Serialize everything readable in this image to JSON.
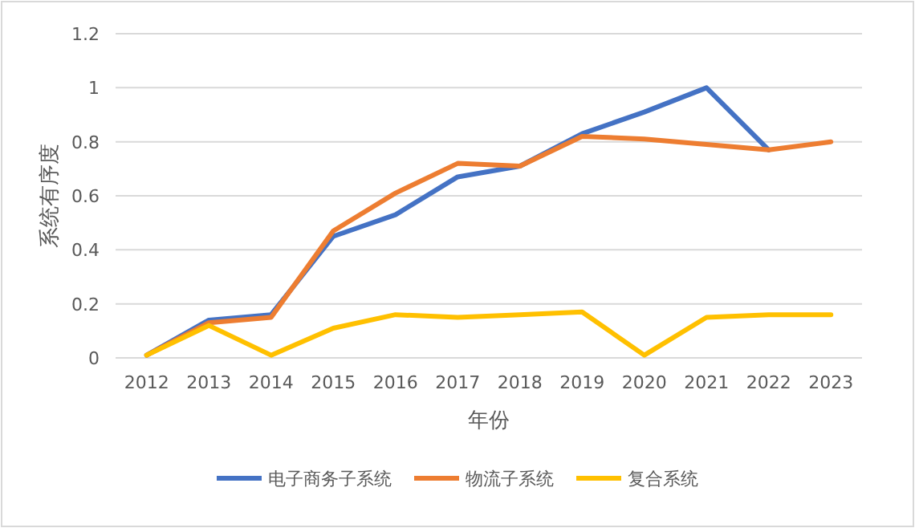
{
  "chart_data": {
    "type": "line",
    "xlabel": "年份",
    "ylabel": "系统有序度",
    "categories": [
      "2012",
      "2013",
      "2014",
      "2015",
      "2016",
      "2017",
      "2018",
      "2019",
      "2020",
      "2021",
      "2022",
      "2023"
    ],
    "series": [
      {
        "name": "电子商务子系统",
        "color": "#4472c4",
        "values": [
          0.01,
          0.14,
          0.16,
          0.45,
          0.53,
          0.67,
          0.71,
          0.83,
          0.91,
          1.0,
          0.77,
          null
        ]
      },
      {
        "name": "物流子系统",
        "color": "#ed7d31",
        "values": [
          0.01,
          0.13,
          0.15,
          0.47,
          0.61,
          0.72,
          0.71,
          0.82,
          0.81,
          0.79,
          0.77,
          0.8
        ]
      },
      {
        "name": "复合系统",
        "color": "#ffc000",
        "values": [
          0.01,
          0.12,
          0.01,
          0.11,
          0.16,
          0.15,
          0.16,
          0.17,
          0.01,
          0.15,
          0.16,
          0.16
        ]
      }
    ],
    "ylim": [
      0,
      1.2
    ],
    "yticks": [
      0,
      0.2,
      0.4,
      0.6,
      0.8,
      1,
      1.2
    ],
    "grid": "y",
    "legend": "bottom"
  }
}
